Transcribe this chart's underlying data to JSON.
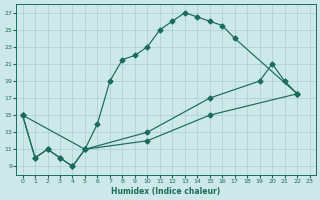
{
  "xlabel": "Humidex (Indice chaleur)",
  "xlim": [
    -0.5,
    23.5
  ],
  "ylim": [
    8,
    28
  ],
  "xticks": [
    0,
    1,
    2,
    3,
    4,
    5,
    6,
    7,
    8,
    9,
    10,
    11,
    12,
    13,
    14,
    15,
    16,
    17,
    18,
    19,
    20,
    21,
    22,
    23
  ],
  "yticks": [
    9,
    11,
    13,
    15,
    17,
    19,
    21,
    23,
    25,
    27
  ],
  "line_color": "#1a6b5a",
  "bg_color": "#cce8e8",
  "grid_color": "#aacfcf",
  "line1_x": [
    0,
    1,
    2,
    3,
    4,
    5,
    6,
    7,
    8,
    9,
    10,
    11,
    12,
    13,
    14,
    15,
    16,
    17,
    22
  ],
  "line1_y": [
    15,
    10,
    11,
    10,
    9,
    11,
    14,
    19,
    21.5,
    22,
    23,
    25,
    26,
    27,
    26.5,
    26,
    25.5,
    24,
    17.5
  ],
  "line2_x": [
    0,
    1,
    2,
    3,
    4,
    5,
    10,
    15,
    19,
    20,
    21,
    22
  ],
  "line2_y": [
    15,
    10,
    11,
    10,
    9,
    11,
    13,
    17,
    19,
    21,
    19,
    17.5
  ],
  "line3_x": [
    0,
    5,
    10,
    15,
    22
  ],
  "line3_y": [
    15,
    11,
    12,
    15,
    17.5
  ]
}
